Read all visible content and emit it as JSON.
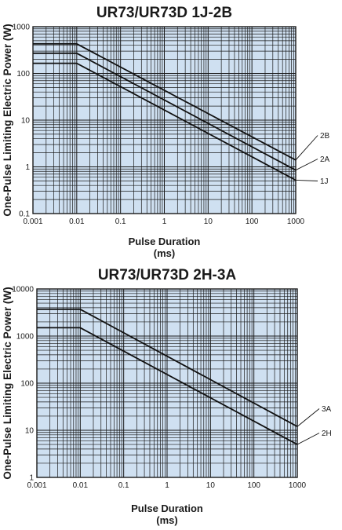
{
  "chart_data": [
    {
      "type": "line",
      "title": "UR73/UR73D 1J-2B",
      "xlabel": "Pulse Duration",
      "xunit": "(ms)",
      "ylabel": "One-Pulse Limiting Electric Power (W)",
      "xscale": "log",
      "yscale": "log",
      "xlim": [
        0.001,
        1000
      ],
      "ylim": [
        0.1,
        1000
      ],
      "grid": true,
      "background_color": "#cfe0f1",
      "x_ticks": [
        "0.001",
        "0.01",
        "0.1",
        "1",
        "10",
        "100",
        "1000"
      ],
      "y_ticks": [
        "0.1",
        "1",
        "10",
        "100",
        "1000"
      ],
      "series": [
        {
          "name": "2B",
          "x": [
            0.001,
            0.01,
            1000
          ],
          "y": [
            430,
            430,
            1.4
          ]
        },
        {
          "name": "2A",
          "x": [
            0.001,
            0.01,
            1000
          ],
          "y": [
            270,
            270,
            0.85
          ]
        },
        {
          "name": "1J",
          "x": [
            0.001,
            0.01,
            1000
          ],
          "y": [
            165,
            165,
            0.52
          ]
        }
      ]
    },
    {
      "type": "line",
      "title": "UR73/UR73D 2H-3A",
      "xlabel": "Pulse Duration",
      "xunit": "(ms)",
      "ylabel": "One-Pulse Limiting Electric Power (W)",
      "xscale": "log",
      "yscale": "log",
      "xlim": [
        0.001,
        1000
      ],
      "ylim": [
        1,
        10000
      ],
      "grid": true,
      "background_color": "#cfe0f1",
      "x_ticks": [
        "0.001",
        "0.01",
        "0.1",
        "1",
        "10",
        "100",
        "1000"
      ],
      "y_ticks": [
        "1",
        "10",
        "100",
        "1000",
        "10000"
      ],
      "series": [
        {
          "name": "3A",
          "x": [
            0.001,
            0.01,
            1000
          ],
          "y": [
            3700,
            3700,
            12
          ]
        },
        {
          "name": "2H",
          "x": [
            0.001,
            0.01,
            1000
          ],
          "y": [
            1500,
            1500,
            5
          ]
        }
      ]
    }
  ]
}
